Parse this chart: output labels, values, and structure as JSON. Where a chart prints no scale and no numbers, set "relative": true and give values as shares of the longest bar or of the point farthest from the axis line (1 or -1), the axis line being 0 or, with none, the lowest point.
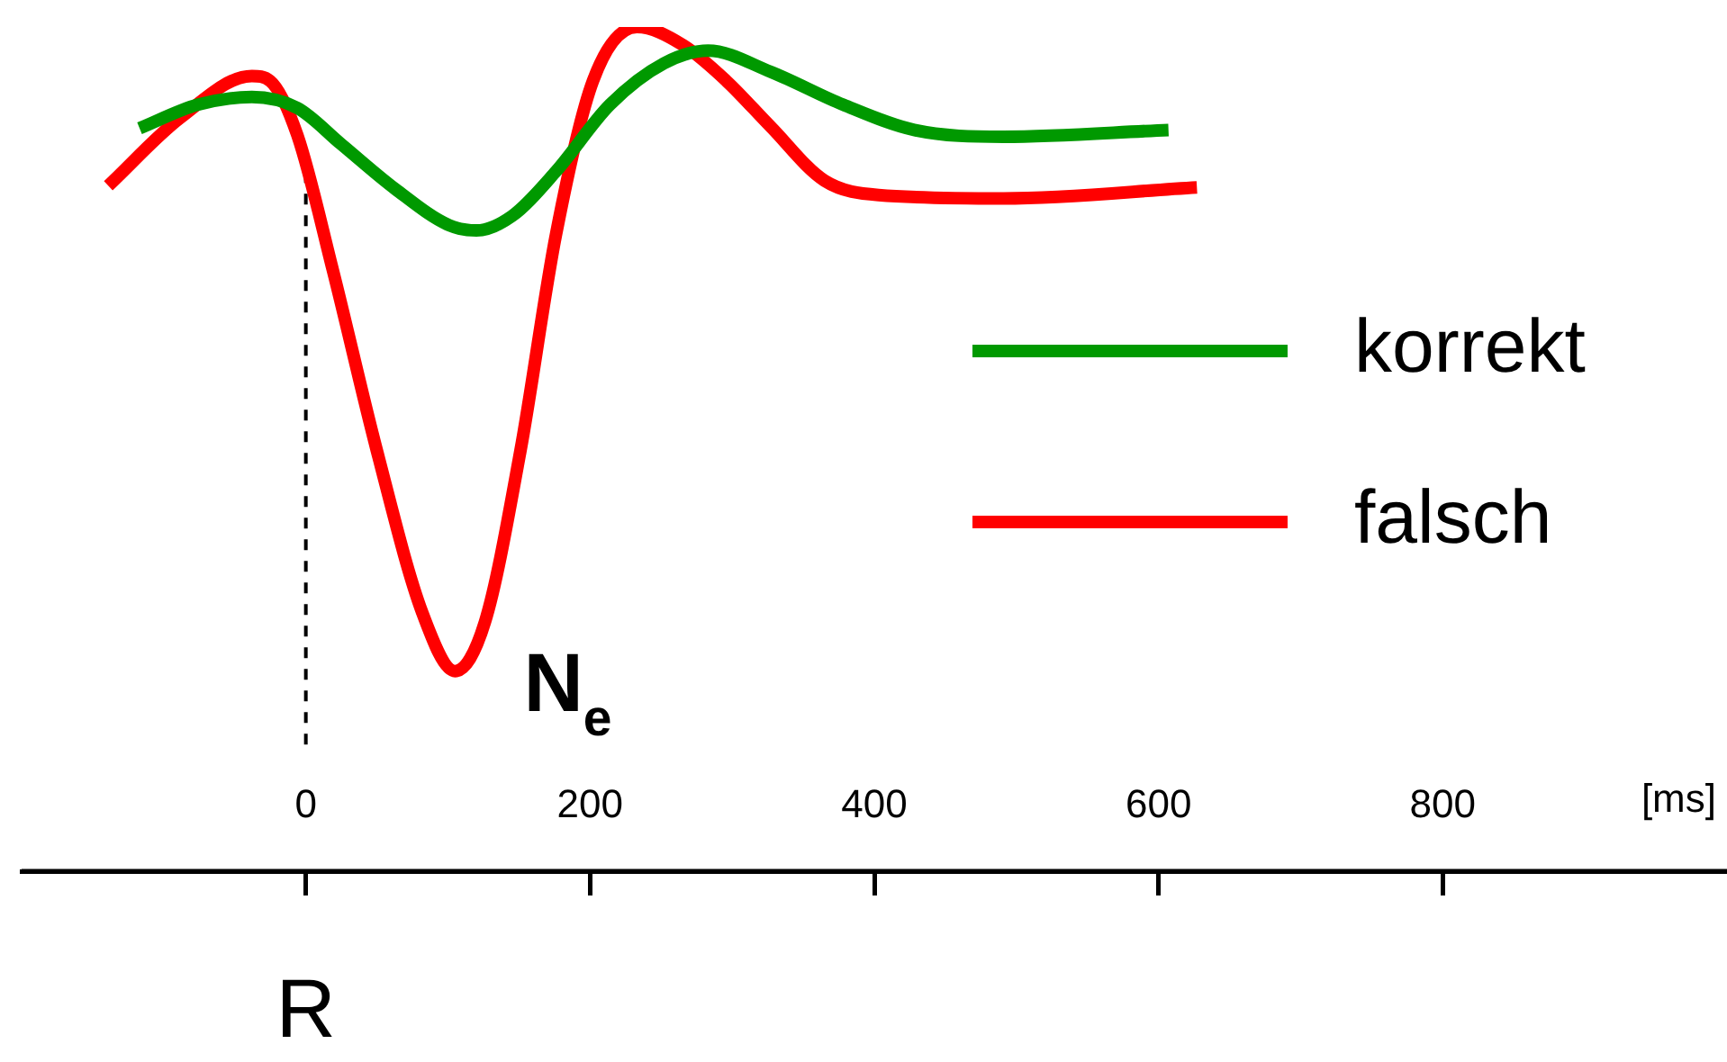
{
  "chart_data": {
    "type": "line",
    "relative": true,
    "xlabel": "[ms]",
    "xlim": [
      -200,
      1000
    ],
    "xticks": [
      0,
      200,
      400,
      600,
      800
    ],
    "legend": "right",
    "grid": false,
    "marker": "none",
    "line_style": "solid",
    "ref_lines": [
      {
        "axis": "x",
        "value": 0,
        "color": "#000000",
        "line_style": "dashed"
      }
    ],
    "annotations": [
      {
        "text": "N$_{e}$",
        "x": 105,
        "y": 0.237
      },
      "R"
    ],
    "series": [
      {
        "name": "korrekt",
        "color": "#009900",
        "x": [
          -117,
          -76,
          -38,
          -6,
          25,
          63,
          101,
          120,
          145,
          176,
          214,
          252,
          283,
          327,
          378,
          428,
          491,
          607
        ],
        "values": [
          0.88,
          0.908,
          0.917,
          0.904,
          0.861,
          0.808,
          0.765,
          0.759,
          0.776,
          0.829,
          0.908,
          0.957,
          0.972,
          0.947,
          0.908,
          0.878,
          0.87,
          0.878
        ]
      },
      {
        "name": "falsch",
        "color": "#ff0000",
        "x": [
          -139,
          -88,
          -38,
          -25,
          -6,
          19,
          50,
          82,
          105,
          126,
          151,
          176,
          202,
          233,
          265,
          296,
          327,
          365,
          403,
          491,
          627
        ],
        "values": [
          0.812,
          0.893,
          0.942,
          0.936,
          0.872,
          0.712,
          0.498,
          0.306,
          0.237,
          0.295,
          0.498,
          0.754,
          0.936,
          1,
          0.979,
          0.936,
          0.882,
          0.818,
          0.801,
          0.797,
          0.81
        ]
      }
    ]
  }
}
